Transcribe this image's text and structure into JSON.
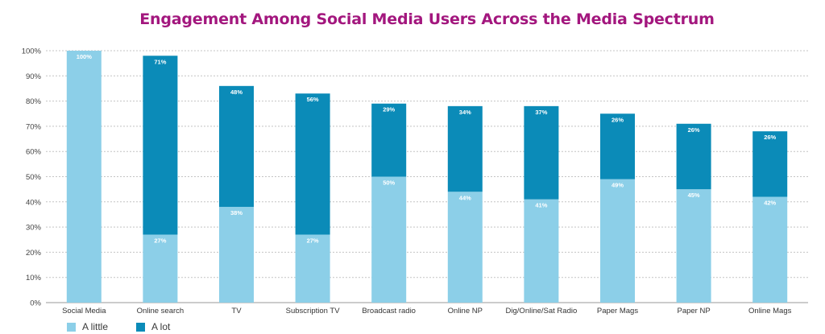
{
  "chart_data": {
    "type": "bar",
    "stacked": true,
    "title": "Engagement Among Social Media Users Across the Media Spectrum",
    "categories": [
      "Social Media",
      "Online search",
      "TV",
      "Subscription TV",
      "Broadcast radio",
      "Online NP",
      "Dig/Online/Sat Radio",
      "Paper Mags",
      "Paper NP",
      "Online Mags"
    ],
    "series": [
      {
        "name": "A little",
        "color": "#8ccfe8",
        "values": [
          100,
          27,
          38,
          27,
          50,
          44,
          41,
          49,
          45,
          42
        ],
        "labels": [
          "100%",
          "27%",
          "38%",
          "27%",
          "50%",
          "44%",
          "41%",
          "49%",
          "45%",
          "42%"
        ]
      },
      {
        "name": "A lot",
        "color": "#0b8bb8",
        "values": [
          0,
          71,
          48,
          56,
          29,
          34,
          37,
          26,
          26,
          26
        ],
        "labels": [
          "",
          "71%",
          "48%",
          "56%",
          "29%",
          "34%",
          "37%",
          "26%",
          "26%",
          "26%"
        ]
      }
    ],
    "ylim": [
      0,
      100
    ],
    "yticks": [
      "0%",
      "10%",
      "20%",
      "30%",
      "40%",
      "50%",
      "60%",
      "70%",
      "80%",
      "90%",
      "100%"
    ],
    "grid": true,
    "legend": "bottom-left"
  }
}
